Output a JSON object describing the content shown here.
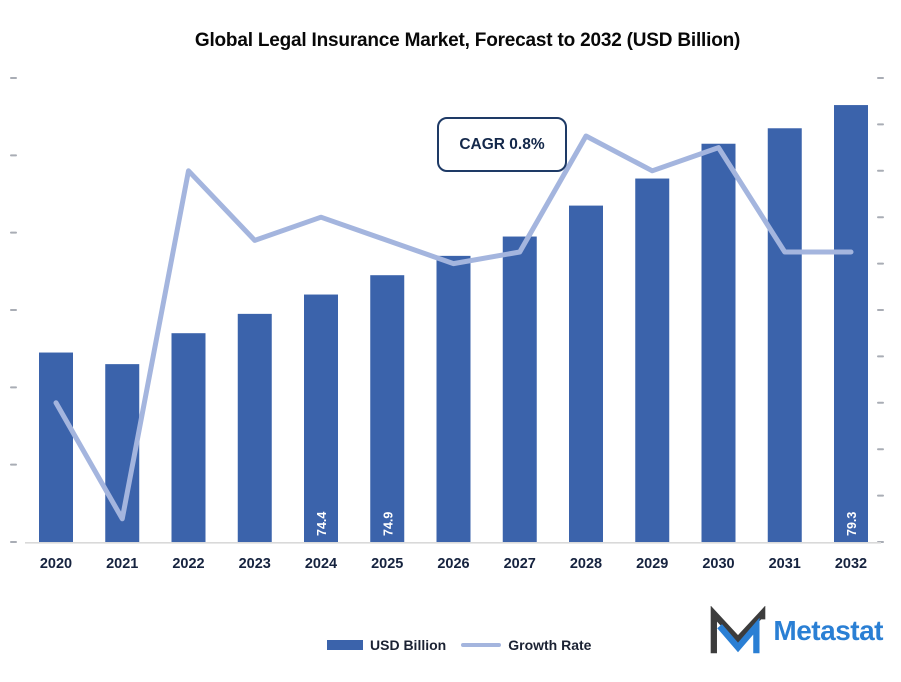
{
  "chart": {
    "title": "Global Legal Insurance Market, Forecast to 2032 (USD Billion)",
    "annotation": "CAGR 0.8%"
  },
  "chart_data": {
    "type": "bar",
    "subtype": "combo-bar-line",
    "title": "Global Legal Insurance Market, Forecast to 2032 (USD Billion)",
    "annotation": "CAGR 0.8%",
    "categories": [
      "2020",
      "2021",
      "2022",
      "2023",
      "2024",
      "2025",
      "2026",
      "2027",
      "2028",
      "2029",
      "2030",
      "2031",
      "2032"
    ],
    "series": [
      {
        "name": "USD Billion",
        "type": "bar",
        "axis": "left",
        "values": [
          72.9,
          72.6,
          73.4,
          73.9,
          74.4,
          74.9,
          75.4,
          75.9,
          76.7,
          77.4,
          78.3,
          78.7,
          79.3
        ],
        "data_labels": [
          "",
          "",
          "",
          "",
          "74.4",
          "74.9",
          "",
          "",
          "",
          "",
          "",
          "",
          "79.3"
        ]
      },
      {
        "name": "Growth Rate",
        "type": "line",
        "axis": "right",
        "values": [
          0.0,
          -0.5,
          1.0,
          0.7,
          0.8,
          0.7,
          0.6,
          0.65,
          1.15,
          1.0,
          1.1,
          0.65,
          0.65
        ]
      }
    ],
    "xlabel": "",
    "ylabel": "",
    "y1lim": [
      68,
      80
    ],
    "y1tick_step": 2,
    "y2lim": [
      -0.6,
      1.4
    ],
    "y2tick_step": 0.2,
    "axis_tick_labels_visible": false,
    "grid": false,
    "legend_position": "bottom-center",
    "colors": {
      "bar": "#3B63AB",
      "line": "#A4B5DE",
      "bar_label_text": "#ffffff",
      "x_labels": "#16233f",
      "baseline": "#d9d9d9",
      "ticks": "#a9adb5",
      "annotation_border": "#1e3a66",
      "annotation_text": "#14284a"
    }
  },
  "legend": {
    "bar_label": "USD Billion",
    "line_label": "Growth Rate"
  },
  "brand": {
    "name": "Metastat"
  }
}
